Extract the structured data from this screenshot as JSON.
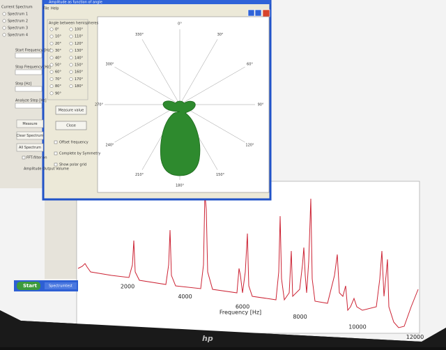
{
  "main_window": {
    "current_spectrum": "Current Spectrum",
    "spectra": [
      "Spectrum 1",
      "Spectrum 2",
      "Spectrum 3",
      "Spectrum 4"
    ],
    "fields": [
      "Start Frequency [Hz]",
      "Stop Frequency [Hz]",
      "Step [Hz]",
      "Analyze Step [Hz]"
    ],
    "buttons": [
      "Measure",
      "Clear Spectrum",
      "All Spectrum"
    ],
    "checkbox": "FFT-filter on",
    "volume_label": "Amplitude Output Volume",
    "x_ticks": [
      "2000",
      "4000",
      "6000",
      "8000",
      "10000",
      "12000"
    ],
    "x_label": "Frequency [Hz]"
  },
  "dialog": {
    "title": "Amplitude as function of angle",
    "menu": [
      "File",
      "Help"
    ],
    "angle_group": "Angle between hemispheres",
    "angles": [
      "0°",
      "10°",
      "20°",
      "30°",
      "40°",
      "50°",
      "60°",
      "70°",
      "80°",
      "90°",
      "100°",
      "110°",
      "120°",
      "130°",
      "140°",
      "150°",
      "160°",
      "170°",
      "180°"
    ],
    "polar_labels": [
      "0°",
      "30°",
      "60°",
      "90°",
      "120°",
      "150°",
      "180°",
      "210°",
      "240°",
      "270°",
      "300°",
      "330°"
    ],
    "buttons": [
      "Measure value",
      "Close"
    ],
    "checkboxes": [
      "Offset frequency",
      "Complete by Symmetry",
      "Show polar grid"
    ]
  },
  "taskbar": {
    "start": "Start",
    "task": "Spectrumtest"
  },
  "monitor": {
    "brand": "hp"
  }
}
